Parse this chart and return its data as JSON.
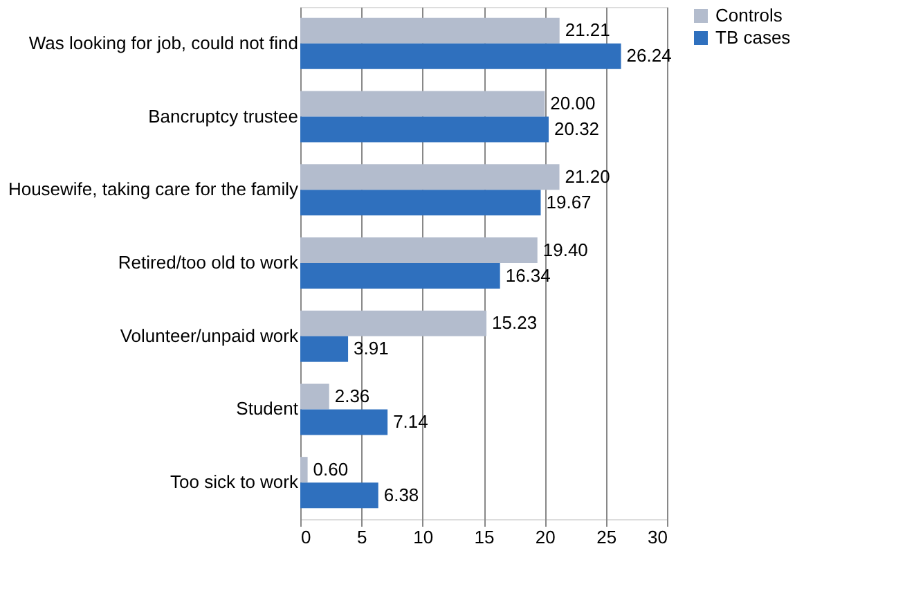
{
  "chart_data": {
    "type": "bar",
    "orientation": "horizontal",
    "categories": [
      "Was looking for job, could not find",
      "Bancruptcy trustee",
      "Housewife, taking care for the family",
      "Retired/too old to work",
      "Volunteer/unpaid work",
      "Student",
      "Too sick to work"
    ],
    "series": [
      {
        "name": "Controls",
        "color": "#b3bccd",
        "values": [
          21.21,
          20.0,
          21.2,
          19.4,
          15.23,
          2.36,
          0.6
        ],
        "value_labels": [
          "21.21",
          "20.00",
          "21.20",
          "19.40",
          "15.23",
          "2.36",
          "0.60"
        ]
      },
      {
        "name": "TB cases",
        "color": "#2f70be",
        "values": [
          26.24,
          20.32,
          19.67,
          16.34,
          3.91,
          7.14,
          6.38
        ],
        "value_labels": [
          "26.24",
          "20.32",
          "19.67",
          "16.34",
          "3.91",
          "7.14",
          "6.38"
        ]
      }
    ],
    "xlim": [
      0,
      30
    ],
    "xticks": [
      0,
      5,
      10,
      15,
      20,
      25,
      30
    ],
    "grid": "x",
    "legend": "right"
  }
}
